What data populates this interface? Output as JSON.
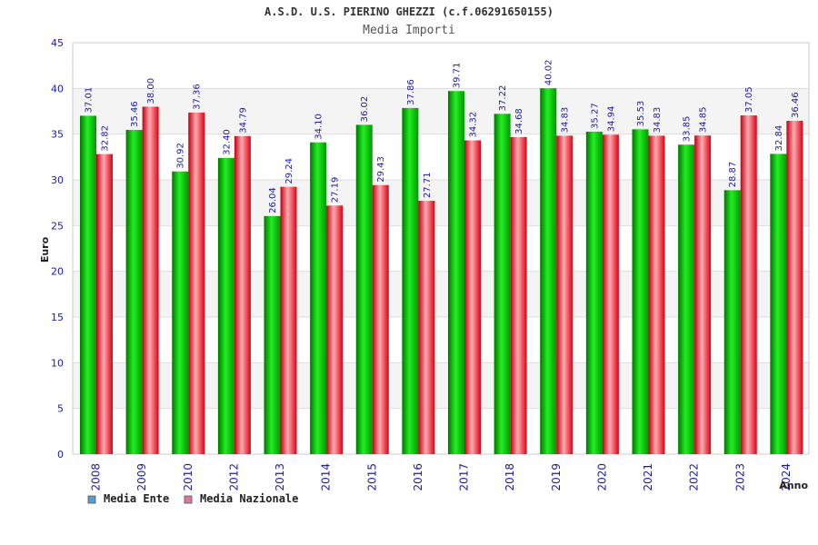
{
  "chart_data": {
    "type": "bar",
    "title": "A.S.D. U.S. PIERINO GHEZZI (c.f.06291650155)",
    "subtitle": "Media Importi",
    "xlabel": "Anno",
    "ylabel": "Euro",
    "ylim": [
      0,
      45
    ],
    "yticks": [
      0,
      5,
      10,
      15,
      20,
      25,
      30,
      35,
      40,
      45
    ],
    "grid": true,
    "legend_position": "bottom-left",
    "categories": [
      "2008",
      "2009",
      "2010",
      "2012",
      "2013",
      "2014",
      "2015",
      "2016",
      "2017",
      "2018",
      "2019",
      "2020",
      "2021",
      "2022",
      "2023",
      "2024"
    ],
    "series": [
      {
        "name": "Media Ente",
        "color": "#00bb00",
        "legend_color": "#5b9bd5",
        "values": [
          37.01,
          35.46,
          30.92,
          32.4,
          26.04,
          34.1,
          36.02,
          37.86,
          39.71,
          37.22,
          40.02,
          35.27,
          35.53,
          33.85,
          28.87,
          32.84
        ],
        "labels": [
          "37.01",
          "35.46",
          "30.92",
          "32.40",
          "26.04",
          "34.10",
          "36.02",
          "37.86",
          "39.71",
          "37.22",
          "40.02",
          "35.27",
          "35.53",
          "33.85",
          "28.87",
          "32.84"
        ]
      },
      {
        "name": "Media Nazionale",
        "color": "#ee1122",
        "legend_color": "#d77aa0",
        "values": [
          32.82,
          38.0,
          37.36,
          34.79,
          29.24,
          27.19,
          29.43,
          27.71,
          34.32,
          34.68,
          34.83,
          34.94,
          34.83,
          34.85,
          37.05,
          36.46
        ],
        "labels": [
          "32.82",
          "38.00",
          "37.36",
          "34.79",
          "29.24",
          "27.19",
          "29.43",
          "27.71",
          "34.32",
          "34.68",
          "34.83",
          "34.94",
          "34.83",
          "34.85",
          "37.05",
          "36.46"
        ]
      }
    ]
  }
}
